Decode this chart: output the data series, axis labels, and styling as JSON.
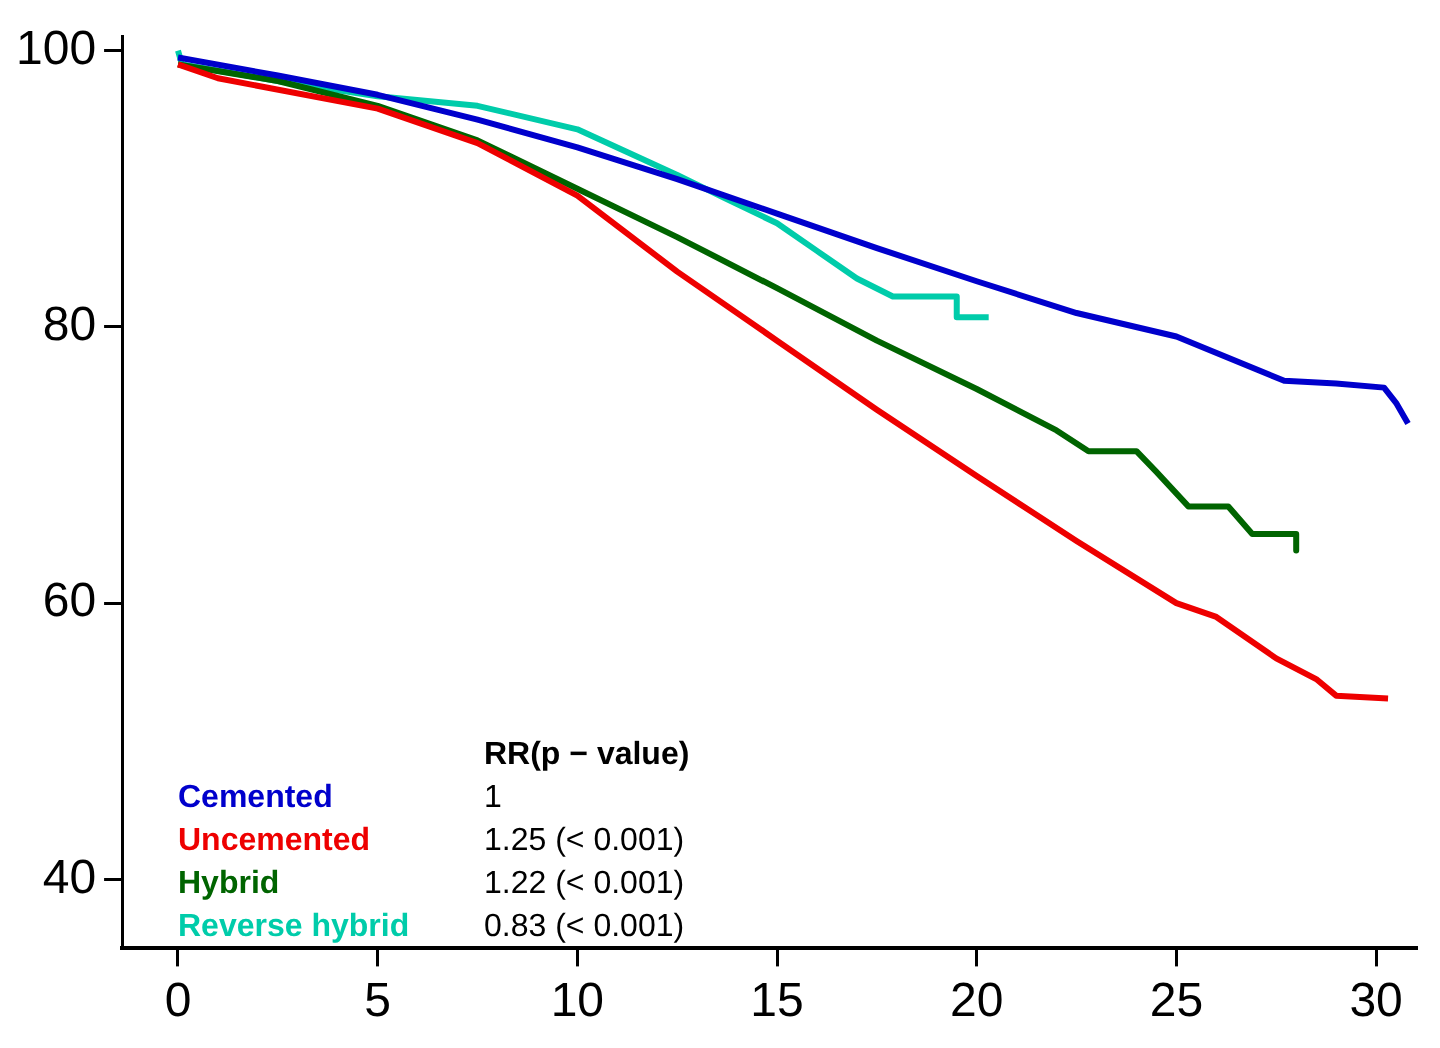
{
  "chart_data": {
    "type": "line",
    "xlim": [
      -1.4,
      31
    ],
    "xticks": [
      0,
      5,
      10,
      15,
      20,
      25,
      30
    ],
    "ylim": [
      35,
      101
    ],
    "yticks": [
      40,
      60,
      80,
      100
    ],
    "grid": false,
    "legend": "bottom left",
    "marker": "none",
    "line_style": "solid",
    "annotations": [
      "RR(p − value)",
      "1",
      "1.25 (< 0.001)",
      "1.22 (< 0.001)",
      "0.83 (< 0.001)"
    ],
    "series": [
      {
        "name": "Cemented",
        "color": "#0000cc",
        "x": [
          0,
          2.5,
          5,
          7.5,
          10,
          12.5,
          15,
          17.5,
          20,
          22.5,
          25,
          27.7,
          29,
          30.2,
          30.5,
          30.8
        ],
        "values": [
          99.5,
          98.2,
          96.8,
          95,
          93,
          90.7,
          88.2,
          85.7,
          83.3,
          81,
          79.3,
          76.1,
          75.9,
          75.6,
          74.5,
          73
        ]
      },
      {
        "name": "Uncemented",
        "color": "#ee0000",
        "x": [
          0,
          1,
          5,
          7.5,
          10,
          12.5,
          15,
          17.5,
          20,
          22.5,
          25,
          26,
          27.5,
          28.5,
          29,
          30.3
        ],
        "values": [
          99,
          98,
          95.8,
          93.3,
          89.5,
          84,
          79,
          74,
          69.2,
          64.5,
          60,
          59,
          56,
          54.5,
          53.3,
          53.1
        ]
      },
      {
        "name": "Hybrid",
        "color": "#006400",
        "x": [
          0,
          2.5,
          5,
          7.5,
          10,
          12.5,
          15,
          17.5,
          20,
          22,
          22.8,
          24,
          24.5,
          25.3,
          26.3,
          26.9,
          28,
          28
        ],
        "values": [
          99,
          97.8,
          96,
          93.5,
          90,
          86.5,
          82.8,
          79,
          75.5,
          72.5,
          71,
          71,
          69.5,
          67,
          67,
          65,
          65,
          63.8
        ]
      },
      {
        "name": "Reverse hybrid",
        "color": "#00ccaa",
        "x": [
          0,
          0.1,
          2.5,
          5,
          7.5,
          10,
          12.5,
          13.7,
          15,
          16,
          17,
          17.9,
          19.5,
          19.5,
          20.3
        ],
        "values": [
          100,
          99,
          97.8,
          96.7,
          96,
          94.3,
          91,
          89.3,
          87.5,
          85.5,
          83.5,
          82.2,
          82.2,
          80.7,
          80.7
        ]
      }
    ]
  }
}
